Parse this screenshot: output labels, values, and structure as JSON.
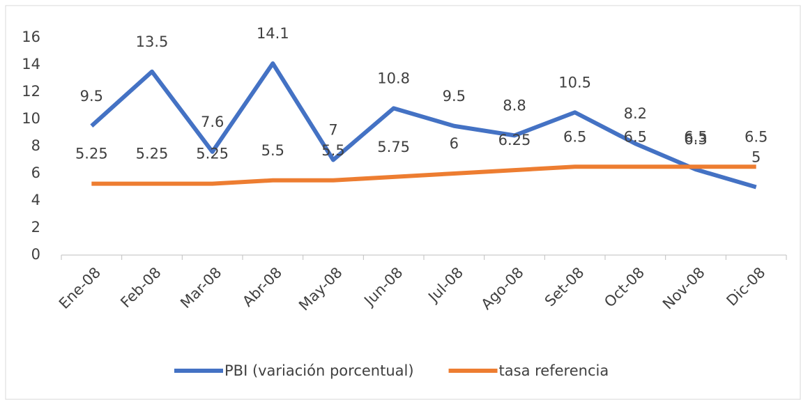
{
  "chart_data": {
    "type": "line",
    "categories": [
      "Ene-08",
      "Feb-08",
      "Mar-08",
      "Abr-08",
      "May-08",
      "Jun-08",
      "Jul-08",
      "Ago-08",
      "Set-08",
      "Oct-08",
      "Nov-08",
      "Dic-08"
    ],
    "series": [
      {
        "name": "PBI (variación porcentual)",
        "color": "#4472c4",
        "values": [
          9.5,
          13.5,
          7.6,
          14.1,
          7,
          10.8,
          9.5,
          8.8,
          10.5,
          8.2,
          6.3,
          5
        ]
      },
      {
        "name": "tasa referencia",
        "color": "#ed7d31",
        "values": [
          5.25,
          5.25,
          5.25,
          5.5,
          5.5,
          5.75,
          6,
          6.25,
          6.5,
          6.5,
          6.5,
          6.5
        ]
      }
    ],
    "ylim": [
      0,
      16
    ],
    "yticks": [
      0,
      2,
      4,
      6,
      8,
      10,
      12,
      14,
      16
    ],
    "grid": false,
    "legend": "bottom"
  }
}
